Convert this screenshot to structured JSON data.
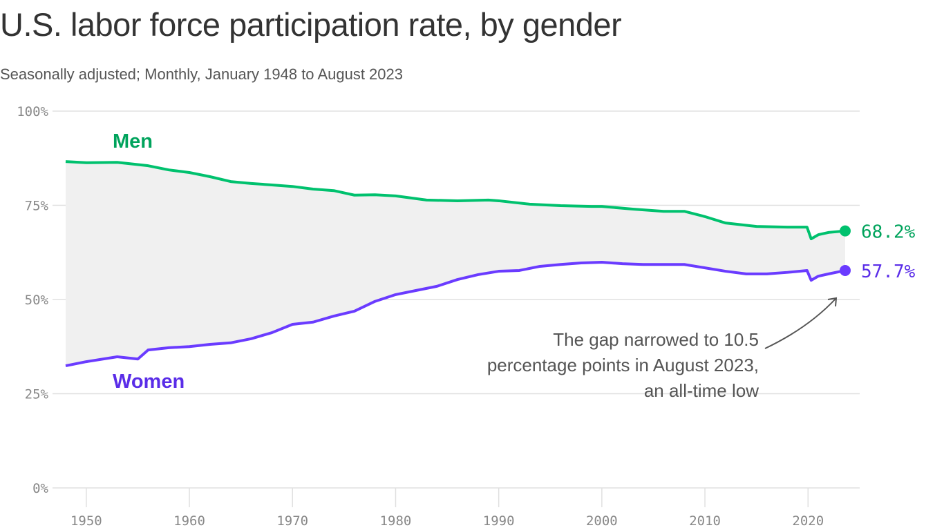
{
  "chart_data": {
    "type": "line",
    "title": "U.S. labor force participation rate, by gender",
    "subtitle": "Seasonally adjusted; Monthly, January 1948 to August 2023",
    "xlim": [
      1948,
      2023.6
    ],
    "ylim": [
      0,
      100
    ],
    "x_ticks": [
      1950,
      1960,
      1970,
      1980,
      1990,
      2000,
      2010,
      2020
    ],
    "x_tick_labels": [
      "1950",
      "1960",
      "1970",
      "1980",
      "1990",
      "2000",
      "2010",
      "2020"
    ],
    "y_ticks": [
      0,
      25,
      50,
      75,
      100
    ],
    "y_tick_labels": [
      "0%",
      "25%",
      "50%",
      "75%",
      "100%"
    ],
    "grid": true,
    "gap_fill_color": "#f0f0f0",
    "series": [
      {
        "name": "Men",
        "color": "#00c16e",
        "label_color": "#00a35c",
        "end_label": "68.2%",
        "x": [
          1948,
          1950,
          1953,
          1956,
          1958,
          1960,
          1962,
          1964,
          1966,
          1968,
          1970,
          1972,
          1974,
          1976,
          1978,
          1980,
          1983,
          1986,
          1989,
          1990,
          1993,
          1996,
          1999,
          2000,
          2003,
          2006,
          2008,
          2010,
          2012,
          2015,
          2018,
          2019.9,
          2020.3,
          2021,
          2022,
          2023.6
        ],
        "y": [
          86.6,
          86.3,
          86.4,
          85.5,
          84.4,
          83.7,
          82.6,
          81.3,
          80.8,
          80.4,
          80.0,
          79.3,
          78.9,
          77.7,
          77.8,
          77.5,
          76.4,
          76.2,
          76.4,
          76.2,
          75.3,
          74.9,
          74.7,
          74.7,
          74.0,
          73.4,
          73.4,
          72.0,
          70.3,
          69.4,
          69.2,
          69.2,
          66.1,
          67.2,
          67.8,
          68.2
        ]
      },
      {
        "name": "Women",
        "color": "#6a3bff",
        "label_color": "#5a2de8",
        "end_label": "57.7%",
        "x": [
          1948,
          1950,
          1953,
          1955,
          1956,
          1958,
          1960,
          1962,
          1964,
          1966,
          1968,
          1970,
          1972,
          1974,
          1976,
          1978,
          1980,
          1982,
          1984,
          1986,
          1988,
          1990,
          1992,
          1994,
          1996,
          1998,
          2000,
          2002,
          2004,
          2006,
          2008,
          2010,
          2012,
          2014,
          2016,
          2018,
          2019.9,
          2020.3,
          2021,
          2022,
          2023.6
        ],
        "y": [
          32.4,
          33.5,
          34.8,
          34.2,
          36.6,
          37.2,
          37.5,
          38.1,
          38.5,
          39.6,
          41.2,
          43.4,
          44.0,
          45.6,
          46.9,
          49.5,
          51.3,
          52.4,
          53.5,
          55.3,
          56.6,
          57.5,
          57.7,
          58.8,
          59.3,
          59.7,
          59.9,
          59.5,
          59.3,
          59.3,
          59.3,
          58.4,
          57.5,
          56.8,
          56.8,
          57.2,
          57.7,
          55.1,
          56.2,
          56.8,
          57.7
        ]
      }
    ],
    "annotation": {
      "lines": [
        "The gap narrowed to 10.5",
        "percentage points in August 2023,",
        "an all-time low"
      ]
    }
  }
}
